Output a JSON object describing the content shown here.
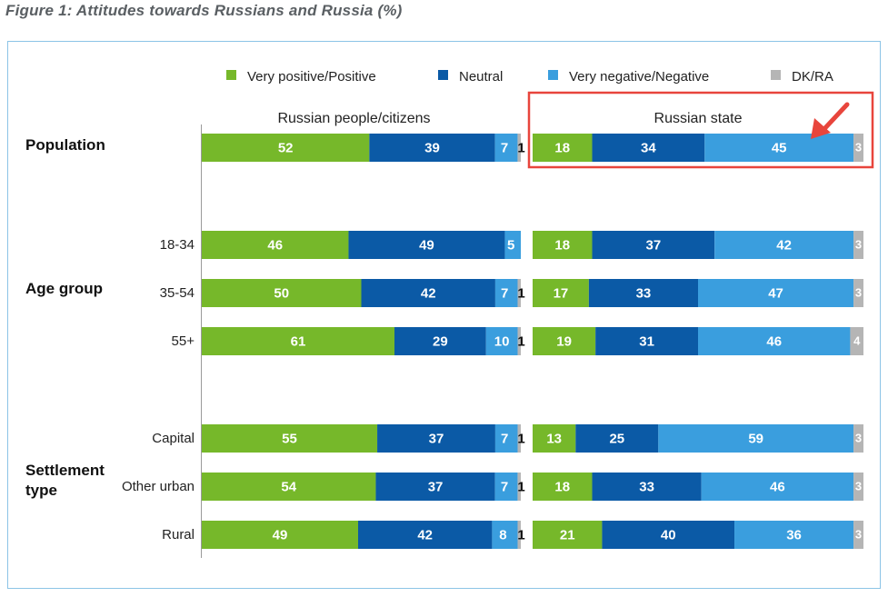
{
  "figure_title": "Figure 1: Attitudes towards Russians and Russia (%)",
  "chart_data": {
    "type": "bar",
    "orientation": "horizontal",
    "stacked": true,
    "xlim": [
      0,
      100
    ],
    "legend_placement": "top",
    "legend": [
      {
        "name": "Very positive/Positive",
        "color": "#76b82a"
      },
      {
        "name": "Neutral",
        "color": "#0b5aa6"
      },
      {
        "name": "Very negative/Negative",
        "color": "#3a9ede"
      },
      {
        "name": "DK/RA",
        "color": "#b5b5b5"
      }
    ],
    "panels": [
      {
        "title": "Russian people/citizens"
      },
      {
        "title": "Russian state",
        "highlighted": true
      }
    ],
    "groups": [
      {
        "label": "Population",
        "rows": [
          {
            "label": "",
            "values": [
              [
                52,
                39,
                7,
                1
              ],
              [
                18,
                34,
                45,
                3
              ]
            ]
          }
        ]
      },
      {
        "label": "Age group",
        "rows": [
          {
            "label": "18-34",
            "values": [
              [
                46,
                49,
                5,
                0
              ],
              [
                18,
                37,
                42,
                3
              ]
            ]
          },
          {
            "label": "35-54",
            "values": [
              [
                50,
                42,
                7,
                1
              ],
              [
                17,
                33,
                47,
                3
              ]
            ]
          },
          {
            "label": "55+",
            "values": [
              [
                61,
                29,
                10,
                1
              ],
              [
                19,
                31,
                46,
                4
              ]
            ]
          }
        ]
      },
      {
        "label": "Settlement type",
        "rows": [
          {
            "label": "Capital",
            "values": [
              [
                55,
                37,
                7,
                1
              ],
              [
                13,
                25,
                59,
                3
              ]
            ]
          },
          {
            "label": "Other urban",
            "values": [
              [
                54,
                37,
                7,
                1
              ],
              [
                18,
                33,
                46,
                3
              ]
            ]
          },
          {
            "label": "Rural",
            "values": [
              [
                49,
                42,
                8,
                1
              ],
              [
                21,
                40,
                36,
                3
              ]
            ]
          }
        ]
      }
    ]
  }
}
